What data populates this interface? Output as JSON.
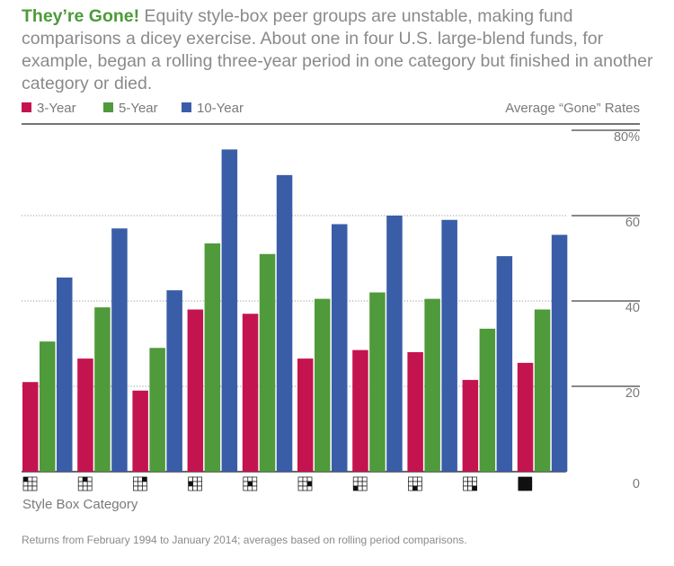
{
  "header": {
    "title": "They’re Gone!",
    "body": "Equity style-box peer groups are unstable, making fund comparisons a dicey exercise. About one in four U.S. large-blend funds, for example, began a rolling three-year period in one category but finished in another category or died."
  },
  "chart_data": {
    "type": "bar",
    "title": "Average “Gone” Rates",
    "xlabel": "Style Box Category",
    "ylabel": "",
    "ylim": [
      0,
      80
    ],
    "yticks": [
      "80%",
      "60",
      "40",
      "20",
      "0"
    ],
    "categories": [
      "Large Value",
      "Large Blend",
      "Large Growth",
      "Mid Value",
      "Mid Blend",
      "Mid Growth",
      "Small Value",
      "Small Blend",
      "Small Growth",
      "All"
    ],
    "category_cells": [
      0,
      1,
      2,
      3,
      4,
      5,
      6,
      7,
      8,
      -1
    ],
    "series": [
      {
        "name": "3-Year",
        "color": "#c4144f",
        "values": [
          21,
          26.5,
          19,
          38,
          37,
          26.5,
          28.5,
          28,
          21.5,
          25.5
        ]
      },
      {
        "name": "5-Year",
        "color": "#4f9a3a",
        "values": [
          30.5,
          38.5,
          29,
          53.5,
          51,
          40.5,
          42,
          40.5,
          33.5,
          38
        ]
      },
      {
        "name": "10-Year",
        "color": "#3a5da8",
        "values": [
          45.5,
          57,
          42.5,
          75.5,
          69.5,
          58,
          60,
          59,
          50.5,
          55.5
        ]
      }
    ],
    "grid": true,
    "legend_position": "top-left"
  },
  "footnote": "Returns from February 1994 to January 2014; averages based on rolling period comparisons."
}
